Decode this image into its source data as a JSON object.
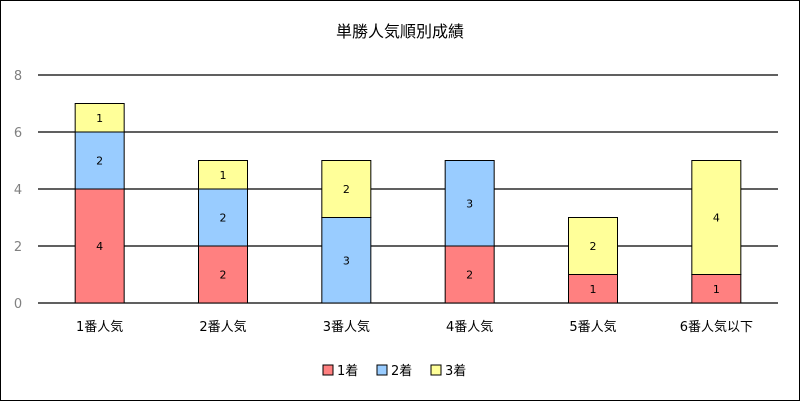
{
  "chart_data": {
    "type": "bar",
    "stacked": true,
    "title": "単勝人気順別成績",
    "xlabel": "",
    "ylabel": "",
    "ylim": [
      0,
      8
    ],
    "yticks": [
      0,
      2,
      4,
      6,
      8
    ],
    "categories": [
      "1番人気",
      "2番人気",
      "3番人気",
      "4番人気",
      "5番人気",
      "6番人気以下"
    ],
    "series": [
      {
        "name": "1着",
        "color": "#ff8080",
        "values": [
          4,
          2,
          0,
          2,
          1,
          1
        ]
      },
      {
        "name": "2着",
        "color": "#99ccff",
        "values": [
          2,
          2,
          3,
          3,
          0,
          0
        ]
      },
      {
        "name": "3着",
        "color": "#ffff99",
        "values": [
          1,
          1,
          2,
          0,
          2,
          4
        ]
      }
    ],
    "grid": true,
    "legend": "bottom"
  }
}
